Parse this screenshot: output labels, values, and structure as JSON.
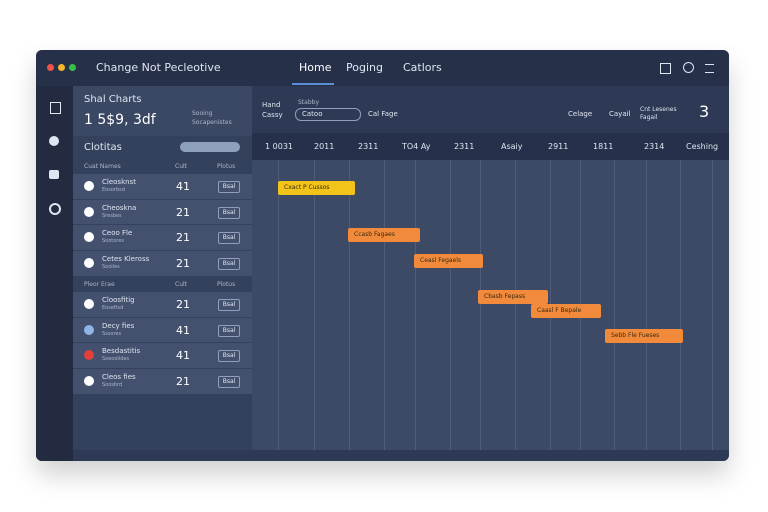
{
  "window": {
    "title": "Change Not Pecleotive",
    "nav": [
      "Home",
      "Poging",
      "Catlors"
    ]
  },
  "panel": {
    "title": "Shal Charts",
    "value": "1 5$9, 3df",
    "meta": [
      "Sooing",
      "Socapenistes"
    ],
    "section": "Clotitas"
  },
  "groups": [
    {
      "header": [
        "Cuat Names",
        "Cult",
        "Plotus"
      ],
      "rows": [
        {
          "name": "Cleosknst",
          "sub": "Eosorbsd",
          "count": 41,
          "action": "Bsal"
        },
        {
          "name": "Cheoskna",
          "sub": "Sresbes",
          "count": 21,
          "action": "Bsal"
        },
        {
          "name": "Ceoo Fle",
          "sub": "Sootores",
          "count": 21,
          "action": "Bsal"
        },
        {
          "name": "Cetes Kleross",
          "sub": "Sooiles",
          "count": 21,
          "action": "Bsal"
        }
      ]
    },
    {
      "header": [
        "Pleor Erae",
        "Cult",
        "Plotus"
      ],
      "rows": [
        {
          "name": "Cloosfitig",
          "sub": "Eoseftsd",
          "count": 21,
          "action": "Bsal"
        },
        {
          "name": "Decy fies",
          "sub": "Sssores",
          "count": 41,
          "action": "Bsal"
        },
        {
          "name": "Besdastitis",
          "sub": "Soeoolides",
          "count": 41,
          "action": "Bsal"
        },
        {
          "name": "Cleos fies",
          "sub": "Soosbrd",
          "count": 21,
          "action": "Bsal"
        }
      ]
    }
  ],
  "toolbar": {
    "label1": "Hand Cassy",
    "label2": "Stabby",
    "select": "Catoo",
    "cal": "Cal Fage",
    "celage": "Celage",
    "cayail": "Cayail",
    "note": "Cnt Lesenes Fagail",
    "count": "3"
  },
  "timeline": [
    "1 0031",
    "2011",
    "2311",
    "TO4 Ay",
    "2311",
    "Asaiy",
    "2911",
    "1811",
    "2314",
    "Ceshing"
  ],
  "tasks": [
    "Cxact P Cussos",
    "Ccasb Fagaes",
    "Ceasl Fegaels",
    "Cbasb Fepass",
    "Caasl F Bepale",
    "Sebb Fle Fueses"
  ]
}
